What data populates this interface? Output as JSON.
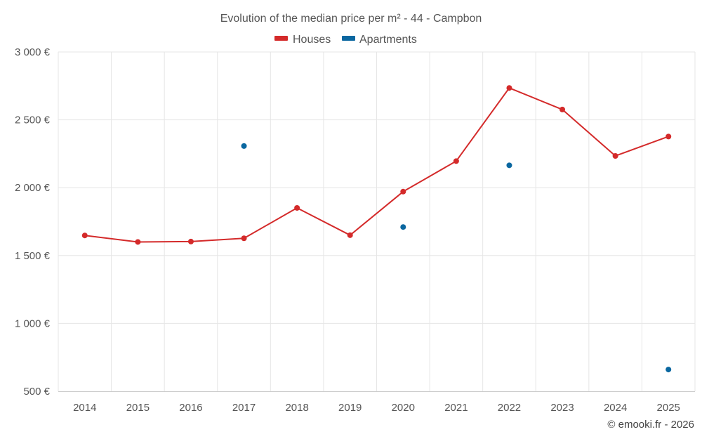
{
  "chart_data": {
    "type": "line",
    "title": "Evolution of the median price per m² - 44 - Campbon",
    "categories": [
      "2014",
      "2015",
      "2016",
      "2017",
      "2018",
      "2019",
      "2020",
      "2021",
      "2022",
      "2023",
      "2024",
      "2025"
    ],
    "ylim": [
      500,
      3000
    ],
    "yticks": [
      500,
      1000,
      1500,
      2000,
      2500,
      3000
    ],
    "ytick_labels": [
      "500 €",
      "1 000 €",
      "1 500 €",
      "2 000 €",
      "2 500 €",
      "3 000 €"
    ],
    "grid": true,
    "legend_position": "top-center",
    "series": [
      {
        "name": "Houses",
        "color": "#d42a2a",
        "mode": "line+markers",
        "values": [
          1648,
          1600,
          1603,
          1627,
          1851,
          1650,
          1971,
          2196,
          2735,
          2576,
          2234,
          2377
        ]
      },
      {
        "name": "Apartments",
        "color": "#0a67a0",
        "mode": "markers",
        "values": [
          null,
          null,
          null,
          2307,
          null,
          null,
          1710,
          null,
          2165,
          null,
          null,
          660
        ]
      }
    ]
  },
  "credit": "© emooki.fr - 2026"
}
